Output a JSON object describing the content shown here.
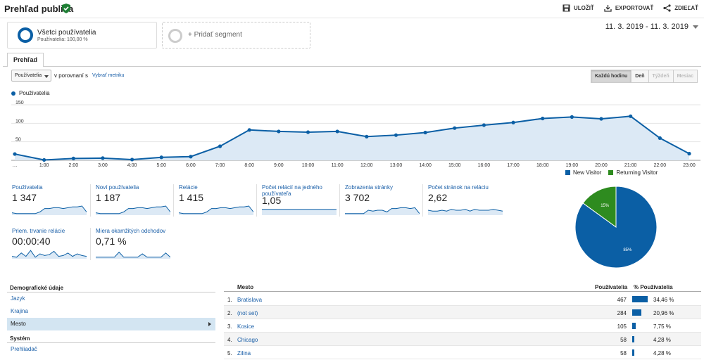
{
  "header": {
    "title": "Prehľad publika",
    "save": "ULOŽIŤ",
    "export": "EXPORTOVAŤ",
    "share": "ZDIEĽAŤ"
  },
  "segments": {
    "active_name": "Všetci používatelia",
    "active_sub": "Používatelia: 100,00 %",
    "add_label": "+ Pridať segment"
  },
  "date_range": "11. 3. 2019 - 11. 3. 2019",
  "tab": "Prehľad",
  "controls": {
    "metric": "Používatelia",
    "vs_label": "v porovnaní s",
    "choose_metric": "Vybrať metriku",
    "granularity": [
      "Každú hodinu",
      "Deň",
      "Týždeň",
      "Mesiac"
    ]
  },
  "chart_data": [
    {
      "type": "area",
      "series": [
        {
          "name": "Používatelia",
          "values": [
            17,
            1,
            5,
            6,
            2,
            8,
            10,
            38,
            82,
            78,
            76,
            78,
            64,
            68,
            75,
            87,
            95,
            102,
            113,
            117,
            112,
            119,
            60,
            18
          ]
        }
      ],
      "categories": [
        "…",
        "1:00",
        "2:00",
        "3:00",
        "4:00",
        "5:00",
        "6:00",
        "7:00",
        "8:00",
        "9:00",
        "10:00",
        "11:00",
        "12:00",
        "13:00",
        "14:00",
        "15:00",
        "16:00",
        "17:00",
        "18:00",
        "19:00",
        "20:00",
        "21:00",
        "22:00",
        "23:00"
      ],
      "yticks": [
        50,
        100,
        150
      ],
      "ylim": [
        0,
        150
      ],
      "color": "#0b5fa5"
    },
    {
      "type": "pie",
      "labels": [
        "New Visitor",
        "Returning Visitor"
      ],
      "values": [
        85,
        15
      ],
      "slice_labels": [
        "85%",
        "15%"
      ],
      "colors": [
        "#0b5fa5",
        "#2e8b1f"
      ]
    }
  ],
  "scorecards": [
    {
      "label": "Používatelia",
      "value": "1 347"
    },
    {
      "label": "Noví používatelia",
      "value": "1 187"
    },
    {
      "label": "Relácie",
      "value": "1 415"
    },
    {
      "label": "Počet relácií na jedného používateľa",
      "value": "1,05"
    },
    {
      "label": "Zobrazenia stránky",
      "value": "3 702"
    },
    {
      "label": "Počet stránok na reláciu",
      "value": "2,62"
    },
    {
      "label": "Priem. trvanie relácie",
      "value": "00:00:40"
    },
    {
      "label": "Miera okamžitých odchodov",
      "value": "0,71 %"
    }
  ],
  "demographics": {
    "title": "Demografické údaje",
    "items": [
      "Jazyk",
      "Krajina",
      "Mesto"
    ],
    "system_title": "Systém",
    "system_items": [
      "Prehliadač"
    ]
  },
  "table": {
    "headers": [
      "Mesto",
      "Používatelia",
      "% Používatelia"
    ],
    "rows": [
      {
        "rank": "1.",
        "city": "Bratislava",
        "users": "467",
        "pct": "34,46 %",
        "share": 34.46
      },
      {
        "rank": "2.",
        "city": "(not set)",
        "users": "284",
        "pct": "20,96 %",
        "share": 20.96
      },
      {
        "rank": "3.",
        "city": "Kosice",
        "users": "105",
        "pct": "7,75 %",
        "share": 7.75
      },
      {
        "rank": "4.",
        "city": "Chicago",
        "users": "58",
        "pct": "4,28 %",
        "share": 4.28
      },
      {
        "rank": "5.",
        "city": "Zilina",
        "users": "58",
        "pct": "4,28 %",
        "share": 4.28
      }
    ]
  }
}
